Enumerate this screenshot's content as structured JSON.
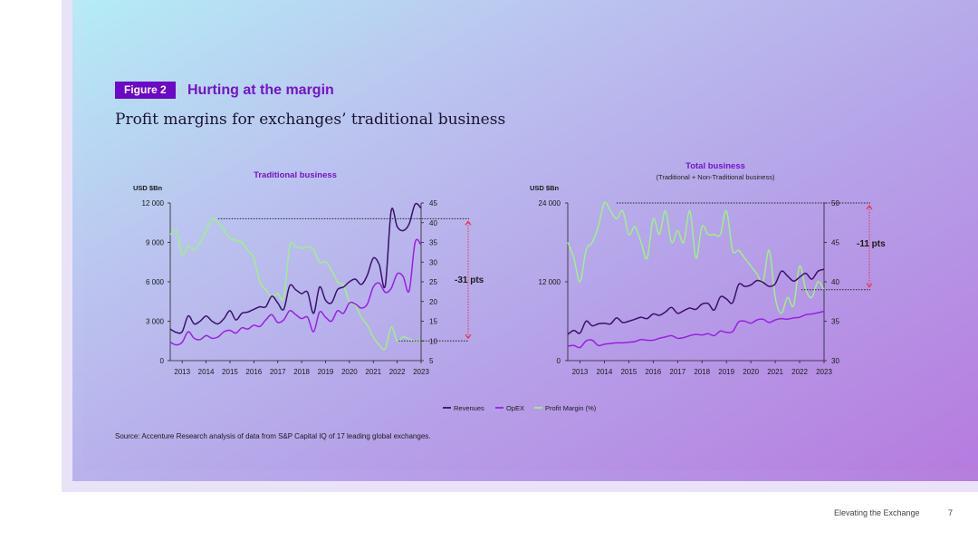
{
  "figure_label": "Figure 2",
  "figure_title": "Hurting at the margin",
  "subtitle": "Profit margins for exchanges’ traditional business",
  "source": "Source: Accenture Research analysis of data from S&P Capital IQ of 17 leading global exchanges.",
  "footer": {
    "doc_title": "Elevating the Exchange",
    "page_number": "7"
  },
  "colors": {
    "revenues": "#3b0f6b",
    "opex": "#9a1ee6",
    "profit_margin": "#9ef08a",
    "annotation": "#e8334e",
    "title_purple": "#7413c9"
  },
  "legend": [
    {
      "name": "Revenues",
      "color": "#3b0f6b"
    },
    {
      "name": "OpEX",
      "color": "#9a1ee6"
    },
    {
      "name": "Profit Margin (%)",
      "color": "#9ef08a"
    }
  ],
  "chart_data": [
    {
      "type": "line",
      "title": "Traditional business",
      "subtitle": "",
      "left_axis_label": "USD $Bn",
      "left_ylim": [
        0,
        12000
      ],
      "left_ticks": [
        0,
        3000,
        6000,
        9000,
        12000
      ],
      "left_tick_labels": [
        "0",
        "3 000",
        "6 000",
        "9 000",
        "12 000"
      ],
      "right_ylim": [
        5,
        45
      ],
      "right_ticks": [
        5,
        10,
        15,
        20,
        25,
        30,
        35,
        40,
        45
      ],
      "right_tick_labels": [
        "5",
        "10",
        "15",
        "20",
        "25",
        "30",
        "35",
        "40",
        "45"
      ],
      "x_tick_labels": [
        "2013",
        "2014",
        "2015",
        "2016",
        "2017",
        "2018",
        "2019",
        "2020",
        "2021",
        "2022",
        "2023"
      ],
      "xlim": [
        2012.5,
        2023.0
      ],
      "annotation": {
        "label": "-31 pts",
        "from": 41,
        "to": 10
      },
      "series": [
        {
          "name": "Revenues",
          "axis": "left",
          "x": [
            2012.5,
            2012.75,
            2013.0,
            2013.25,
            2013.5,
            2013.75,
            2014.0,
            2014.25,
            2014.5,
            2014.75,
            2015.0,
            2015.25,
            2015.5,
            2015.75,
            2016.0,
            2016.25,
            2016.5,
            2016.75,
            2017.0,
            2017.25,
            2017.5,
            2017.75,
            2018.0,
            2018.25,
            2018.5,
            2018.75,
            2019.0,
            2019.25,
            2019.5,
            2019.75,
            2020.0,
            2020.25,
            2020.5,
            2020.75,
            2021.0,
            2021.25,
            2021.5,
            2021.75,
            2022.0,
            2022.25,
            2022.5,
            2022.75,
            2023.0
          ],
          "y": [
            2400,
            2150,
            2200,
            3400,
            2800,
            3000,
            3400,
            3000,
            2800,
            3200,
            3800,
            3100,
            3600,
            3700,
            3900,
            4100,
            4100,
            4900,
            4400,
            3900,
            5700,
            5400,
            5100,
            5200,
            3600,
            5600,
            4600,
            4400,
            5400,
            5600,
            6000,
            6200,
            5800,
            6500,
            7800,
            7300,
            5700,
            11400,
            10200,
            9900,
            10400,
            11900,
            11600
          ]
        },
        {
          "name": "OpEX",
          "axis": "left",
          "x": [
            2012.5,
            2012.75,
            2013.0,
            2013.25,
            2013.5,
            2013.75,
            2014.0,
            2014.25,
            2014.5,
            2014.75,
            2015.0,
            2015.25,
            2015.5,
            2015.75,
            2016.0,
            2016.25,
            2016.5,
            2016.75,
            2017.0,
            2017.25,
            2017.5,
            2017.75,
            2018.0,
            2018.25,
            2018.5,
            2018.75,
            2019.0,
            2019.25,
            2019.5,
            2019.75,
            2020.0,
            2020.25,
            2020.5,
            2020.75,
            2021.0,
            2021.25,
            2021.5,
            2021.75,
            2022.0,
            2022.25,
            2022.5,
            2022.75,
            2023.0
          ],
          "y": [
            1400,
            1200,
            1400,
            2200,
            1700,
            1600,
            1900,
            1700,
            1800,
            2200,
            2300,
            2100,
            2500,
            2400,
            2700,
            2600,
            3100,
            3500,
            2900,
            3100,
            3800,
            3500,
            3200,
            3300,
            2200,
            3700,
            3300,
            3000,
            3800,
            3600,
            4400,
            4300,
            4000,
            4300,
            5600,
            5900,
            5200,
            5500,
            6600,
            6400,
            5300,
            9000,
            8800
          ]
        },
        {
          "name": "Profit Margin (%)",
          "axis": "right",
          "x": [
            2012.5,
            2012.75,
            2013.0,
            2013.25,
            2013.5,
            2013.75,
            2014.0,
            2014.25,
            2014.5,
            2014.75,
            2015.0,
            2015.25,
            2015.5,
            2015.75,
            2016.0,
            2016.25,
            2016.5,
            2016.75,
            2017.0,
            2017.25,
            2017.5,
            2017.75,
            2018.0,
            2018.25,
            2018.5,
            2018.75,
            2019.0,
            2019.25,
            2019.5,
            2019.75,
            2020.0,
            2020.25,
            2020.5,
            2020.75,
            2021.0,
            2021.25,
            2021.5,
            2021.75,
            2022.0,
            2022.25,
            2022.5,
            2022.75,
            2023.0
          ],
          "y": [
            37,
            38,
            32,
            34,
            33,
            35,
            38,
            41,
            40,
            38,
            36,
            35.5,
            35,
            33,
            31,
            25,
            23,
            21,
            22,
            21,
            34,
            34,
            33.5,
            34,
            33,
            30,
            30,
            28,
            25,
            24,
            20,
            19,
            16,
            14,
            11,
            9,
            8,
            13.5,
            10,
            11,
            10.5,
            10,
            10
          ]
        }
      ]
    },
    {
      "type": "line",
      "title": "Total business",
      "subtitle": "(Traditional + Non-Traditional business)",
      "left_axis_label": "USD $Bn",
      "left_ylim": [
        0,
        24000
      ],
      "left_ticks": [
        0,
        12000,
        24000
      ],
      "left_tick_labels": [
        "0",
        "12 000",
        "24 000"
      ],
      "right_ylim": [
        30,
        50
      ],
      "right_ticks": [
        30,
        35,
        40,
        45,
        50
      ],
      "right_tick_labels": [
        "30",
        "35",
        "40",
        "45",
        "50"
      ],
      "x_tick_labels": [
        "2013",
        "2014",
        "2015",
        "2016",
        "2017",
        "2018",
        "2019",
        "2020",
        "2021",
        "2022",
        "2023"
      ],
      "xlim": [
        2012.5,
        2023.0
      ],
      "annotation": {
        "label": "-11 pts",
        "from": 50,
        "to": 39
      },
      "series": [
        {
          "name": "Revenues",
          "axis": "left",
          "x": [
            2012.5,
            2012.75,
            2013.0,
            2013.25,
            2013.5,
            2013.75,
            2014.0,
            2014.25,
            2014.5,
            2014.75,
            2015.0,
            2015.25,
            2015.5,
            2015.75,
            2016.0,
            2016.25,
            2016.5,
            2016.75,
            2017.0,
            2017.25,
            2017.5,
            2017.75,
            2018.0,
            2018.25,
            2018.5,
            2018.75,
            2019.0,
            2019.25,
            2019.5,
            2019.75,
            2020.0,
            2020.25,
            2020.5,
            2020.75,
            2021.0,
            2021.25,
            2021.5,
            2021.75,
            2022.0,
            2022.25,
            2022.5,
            2022.75,
            2023.0
          ],
          "y": [
            4000,
            4600,
            4200,
            6000,
            5300,
            5600,
            5700,
            5600,
            6500,
            5800,
            6000,
            6300,
            6600,
            6400,
            7100,
            6900,
            7400,
            8100,
            7200,
            7600,
            8000,
            7800,
            8600,
            8700,
            7700,
            9700,
            9400,
            8800,
            11600,
            11300,
            11500,
            12200,
            11900,
            11300,
            11700,
            13600,
            12900,
            12100,
            12700,
            13300,
            12400,
            13600,
            13900
          ]
        },
        {
          "name": "OpEX",
          "axis": "left",
          "x": [
            2012.5,
            2012.75,
            2013.0,
            2013.25,
            2013.5,
            2013.75,
            2014.0,
            2014.25,
            2014.5,
            2014.75,
            2015.0,
            2015.25,
            2015.5,
            2015.75,
            2016.0,
            2016.25,
            2016.5,
            2016.75,
            2017.0,
            2017.25,
            2017.5,
            2017.75,
            2018.0,
            2018.25,
            2018.5,
            2018.75,
            2019.0,
            2019.25,
            2019.5,
            2019.75,
            2020.0,
            2020.25,
            2020.5,
            2020.75,
            2021.0,
            2021.25,
            2021.5,
            2021.75,
            2022.0,
            2022.25,
            2022.5,
            2022.75,
            2023.0
          ],
          "y": [
            2200,
            2300,
            2000,
            3000,
            3100,
            2300,
            2500,
            2600,
            2700,
            2700,
            2800,
            2900,
            3200,
            3100,
            3100,
            3400,
            3600,
            3800,
            3400,
            3500,
            3800,
            4000,
            3900,
            4100,
            3800,
            4500,
            4300,
            4400,
            5900,
            6000,
            5700,
            6200,
            6300,
            5800,
            6200,
            6400,
            6300,
            6500,
            6600,
            7000,
            7100,
            7300,
            7500
          ]
        },
        {
          "name": "Profit Margin (%)",
          "axis": "right",
          "x": [
            2012.5,
            2012.75,
            2013.0,
            2013.25,
            2013.5,
            2013.75,
            2014.0,
            2014.25,
            2014.5,
            2014.75,
            2015.0,
            2015.25,
            2015.5,
            2015.75,
            2016.0,
            2016.25,
            2016.5,
            2016.75,
            2017.0,
            2017.25,
            2017.5,
            2017.75,
            2018.0,
            2018.25,
            2018.5,
            2018.75,
            2019.0,
            2019.25,
            2019.5,
            2019.75,
            2020.0,
            2020.25,
            2020.5,
            2020.75,
            2021.0,
            2021.25,
            2021.5,
            2021.75,
            2022.0,
            2022.25,
            2022.5,
            2022.75,
            2023.0
          ],
          "y": [
            45,
            43,
            40,
            44,
            45,
            47,
            50,
            49,
            48,
            49,
            46,
            47,
            45,
            43,
            48,
            46,
            49,
            45,
            46.5,
            45,
            49,
            43,
            47,
            46,
            46,
            46,
            49,
            44,
            44,
            43,
            42,
            41,
            40,
            44,
            38,
            36,
            38,
            37,
            42,
            39,
            38,
            40,
            39
          ]
        }
      ]
    }
  ]
}
